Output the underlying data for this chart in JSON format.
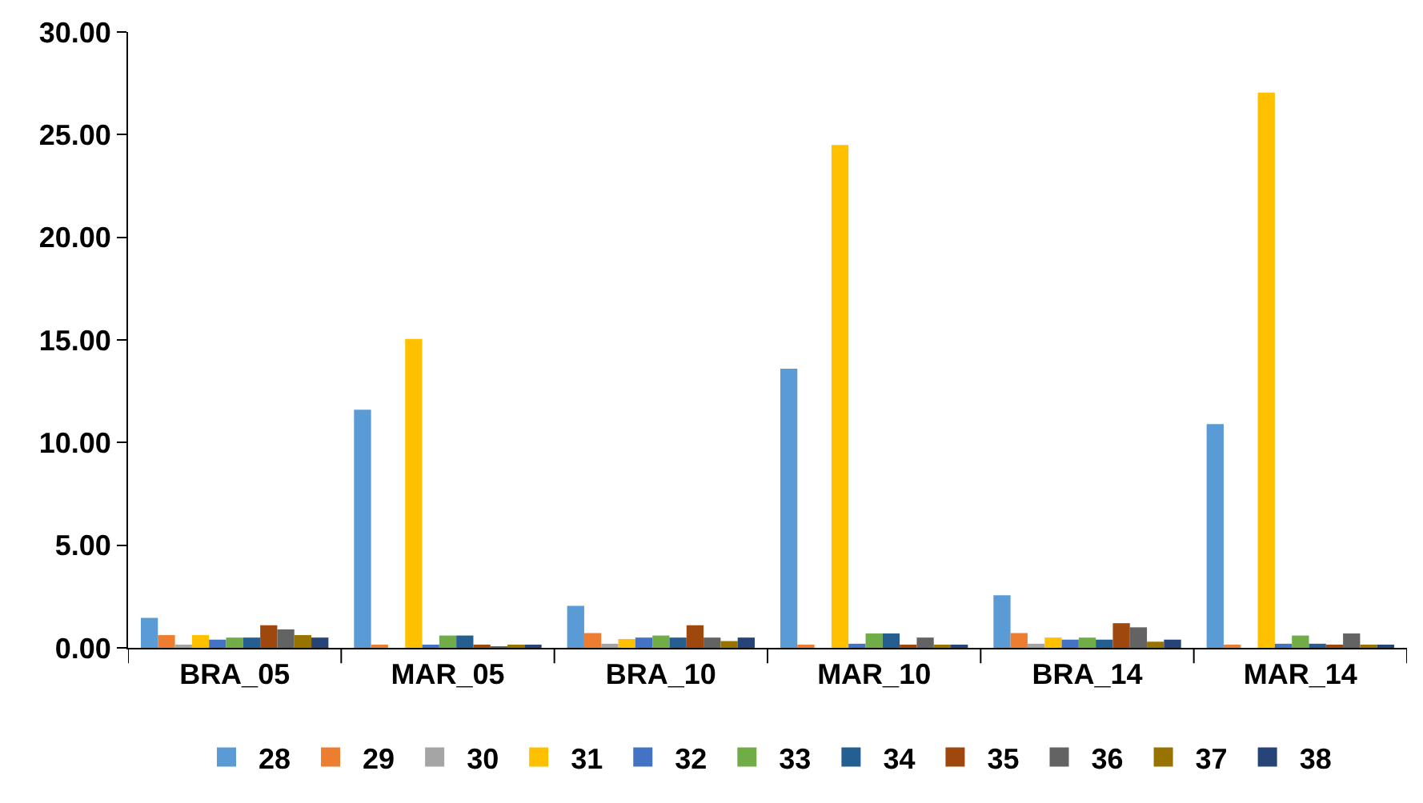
{
  "chart_data": {
    "type": "bar",
    "categories": [
      "BRA_05",
      "MAR_05",
      "BRA_10",
      "MAR_10",
      "BRA_14",
      "MAR_14"
    ],
    "series": [
      {
        "name": "28",
        "color": "#5b9bd5",
        "values": [
          1.46,
          11.6,
          2.05,
          13.6,
          2.56,
          10.9
        ]
      },
      {
        "name": "29",
        "color": "#ed7d31",
        "values": [
          0.62,
          0.08,
          0.72,
          0.08,
          0.72,
          0.08
        ]
      },
      {
        "name": "30",
        "color": "#a5a5a5",
        "values": [
          0.1,
          null,
          0.2,
          null,
          0.2,
          null
        ]
      },
      {
        "name": "31",
        "color": "#ffc000",
        "values": [
          0.62,
          15.05,
          0.43,
          24.5,
          0.5,
          27.05
        ]
      },
      {
        "name": "32",
        "color": "#4472c4",
        "values": [
          0.4,
          0.1,
          0.5,
          0.2,
          0.4,
          0.2
        ]
      },
      {
        "name": "33",
        "color": "#70ad47",
        "values": [
          0.5,
          0.6,
          0.6,
          0.7,
          0.5,
          0.6
        ]
      },
      {
        "name": "34",
        "color": "#255e91",
        "values": [
          0.5,
          0.6,
          0.5,
          0.7,
          0.4,
          0.2
        ]
      },
      {
        "name": "35",
        "color": "#9e480e",
        "values": [
          1.1,
          0.12,
          1.1,
          0.1,
          1.2,
          0.1
        ]
      },
      {
        "name": "36",
        "color": "#636363",
        "values": [
          0.9,
          0.02,
          0.5,
          0.5,
          1.0,
          0.7
        ]
      },
      {
        "name": "37",
        "color": "#997300",
        "values": [
          0.62,
          0.1,
          0.33,
          0.08,
          0.3,
          0.08
        ]
      },
      {
        "name": "38",
        "color": "#264478",
        "values": [
          0.5,
          0.1,
          0.5,
          0.08,
          0.4,
          0.08
        ]
      }
    ],
    "ylim": [
      0,
      30
    ],
    "yticks": [
      {
        "value": 0,
        "label": "0.00"
      },
      {
        "value": 5,
        "label": "5.00"
      },
      {
        "value": 10,
        "label": "10.00"
      },
      {
        "value": 15,
        "label": "15.00"
      },
      {
        "value": 20,
        "label": "20.00"
      },
      {
        "value": 25,
        "label": "25.00"
      },
      {
        "value": 30,
        "label": "30.00"
      }
    ],
    "legend": "bottom"
  }
}
